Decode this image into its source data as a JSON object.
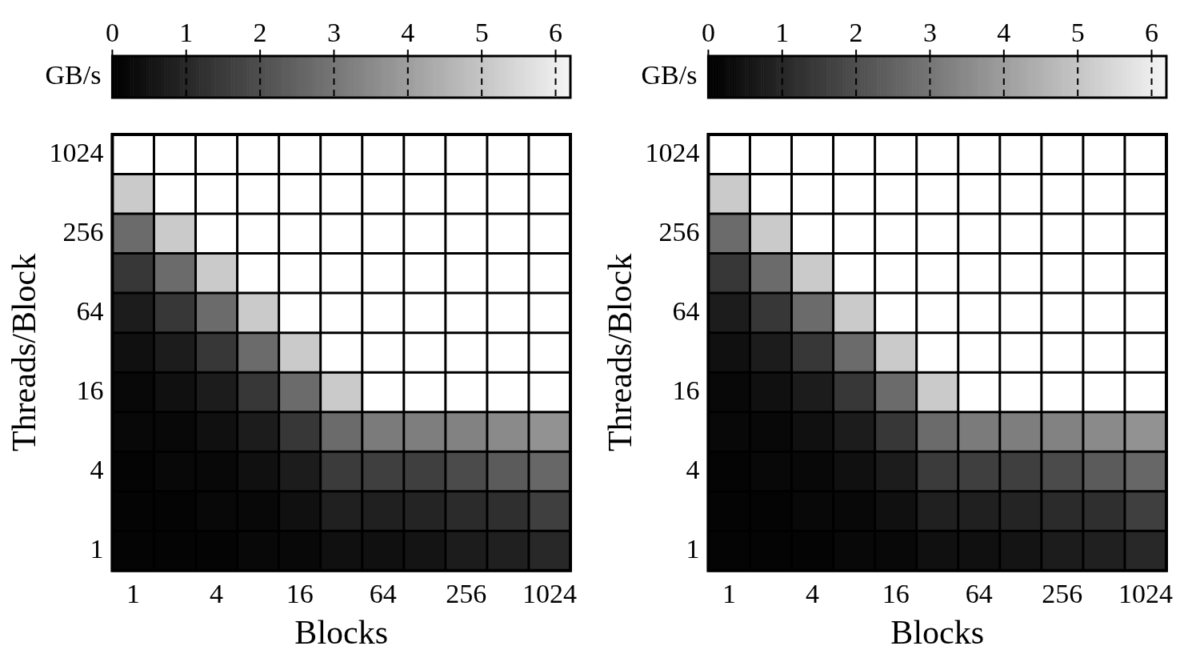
{
  "chart_data": [
    {
      "type": "heatmap",
      "xlabel": "Blocks",
      "ylabel": "Threads/Block",
      "clabel": "GB/s",
      "categories": [
        "1",
        null,
        "4",
        null,
        "16",
        null,
        "64",
        null,
        "256",
        null,
        "1024"
      ],
      "y_categories": [
        "1024",
        null,
        "256",
        null,
        "64",
        null,
        "16",
        null,
        "4",
        null,
        "1"
      ],
      "clim": [
        0,
        6.2
      ],
      "cticks": [
        0,
        1,
        2,
        3,
        4,
        5,
        6
      ],
      "cells": [
        [
          null,
          null,
          null,
          null,
          null,
          null,
          null,
          null,
          null,
          null,
          null
        ],
        [
          5.1,
          null,
          null,
          null,
          null,
          null,
          null,
          null,
          null,
          null,
          null
        ],
        [
          2.7,
          5.1,
          null,
          null,
          null,
          null,
          null,
          null,
          null,
          null,
          null
        ],
        [
          1.4,
          2.7,
          5.1,
          null,
          null,
          null,
          null,
          null,
          null,
          null,
          null
        ],
        [
          0.7,
          1.4,
          2.7,
          5.1,
          null,
          null,
          null,
          null,
          null,
          null,
          null
        ],
        [
          0.4,
          0.7,
          1.4,
          2.7,
          5.1,
          null,
          null,
          null,
          null,
          null,
          null
        ],
        [
          0.2,
          0.4,
          0.7,
          1.4,
          2.7,
          5.1,
          null,
          null,
          null,
          null,
          null
        ],
        [
          0.2,
          0.2,
          0.4,
          0.7,
          1.4,
          2.7,
          3.1,
          3.2,
          3.3,
          3.5,
          3.7
        ],
        [
          0.1,
          0.2,
          0.2,
          0.4,
          0.7,
          1.5,
          1.6,
          1.6,
          1.9,
          2.3,
          2.6
        ],
        [
          0.1,
          0.1,
          0.2,
          0.2,
          0.4,
          0.8,
          0.8,
          0.9,
          1.1,
          1.2,
          1.6
        ],
        [
          0.1,
          0.1,
          0.1,
          0.2,
          0.2,
          0.4,
          0.4,
          0.5,
          0.7,
          0.8,
          1.0
        ]
      ]
    },
    {
      "type": "heatmap",
      "xlabel": "Blocks",
      "ylabel": "Threads/Block",
      "clabel": "GB/s",
      "categories": [
        "1",
        null,
        "4",
        null,
        "16",
        null,
        "64",
        null,
        "256",
        null,
        "1024"
      ],
      "y_categories": [
        "1024",
        null,
        "256",
        null,
        "64",
        null,
        "16",
        null,
        "4",
        null,
        "1"
      ],
      "clim": [
        0,
        6.2
      ],
      "cticks": [
        0,
        1,
        2,
        3,
        4,
        5,
        6
      ],
      "cells": [
        [
          null,
          null,
          null,
          null,
          null,
          null,
          null,
          null,
          null,
          null,
          null
        ],
        [
          5.1,
          null,
          null,
          null,
          null,
          null,
          null,
          null,
          null,
          null,
          null
        ],
        [
          2.7,
          5.1,
          null,
          null,
          null,
          null,
          null,
          null,
          null,
          null,
          null
        ],
        [
          1.4,
          2.7,
          5.1,
          null,
          null,
          null,
          null,
          null,
          null,
          null,
          null
        ],
        [
          0.7,
          1.4,
          2.7,
          5.1,
          null,
          null,
          null,
          null,
          null,
          null,
          null
        ],
        [
          0.4,
          0.7,
          1.4,
          2.7,
          5.1,
          null,
          null,
          null,
          null,
          null,
          null
        ],
        [
          0.2,
          0.4,
          0.7,
          1.4,
          2.7,
          5.1,
          null,
          null,
          null,
          null,
          null
        ],
        [
          0.2,
          0.2,
          0.4,
          0.7,
          1.4,
          2.7,
          3.1,
          3.2,
          3.3,
          3.5,
          3.7
        ],
        [
          0.1,
          0.2,
          0.2,
          0.4,
          0.7,
          1.5,
          1.6,
          1.6,
          1.9,
          2.3,
          2.6
        ],
        [
          0.1,
          0.1,
          0.2,
          0.2,
          0.4,
          0.8,
          0.8,
          0.9,
          1.1,
          1.2,
          1.6
        ],
        [
          0.1,
          0.1,
          0.1,
          0.2,
          0.2,
          0.4,
          0.4,
          0.5,
          0.7,
          0.8,
          1.0
        ]
      ]
    }
  ]
}
